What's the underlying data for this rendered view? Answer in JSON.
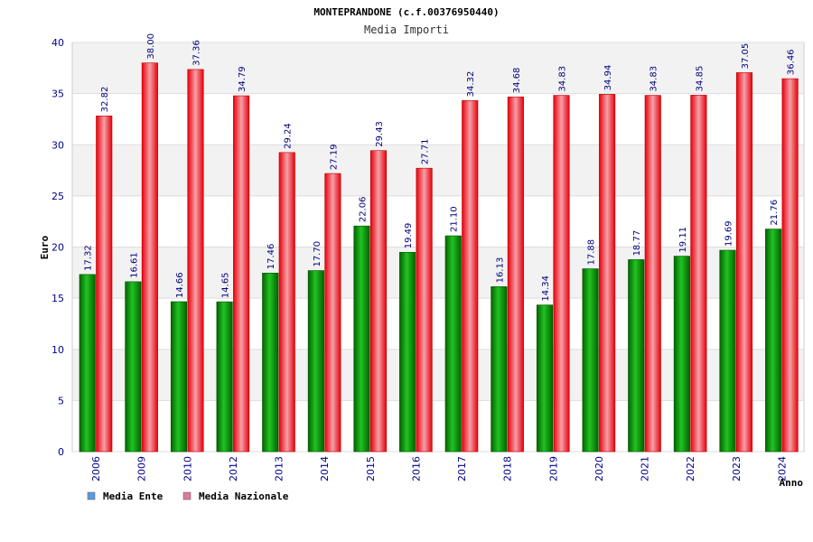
{
  "chart_data": {
    "type": "bar",
    "title": "MONTEPRANDONE (c.f.00376950440)",
    "subtitle": "Media Importi",
    "xlabel": "Anno",
    "ylabel": "Euro",
    "ylim": [
      0,
      40
    ],
    "yticks": [
      0,
      5,
      10,
      15,
      20,
      25,
      30,
      35,
      40
    ],
    "categories": [
      "2006",
      "2009",
      "2010",
      "2012",
      "2013",
      "2014",
      "2015",
      "2016",
      "2017",
      "2018",
      "2019",
      "2020",
      "2021",
      "2022",
      "2023",
      "2024"
    ],
    "series": [
      {
        "name": "Media Ente",
        "color": "#00a000",
        "values": [
          17.32,
          16.61,
          14.66,
          14.65,
          17.46,
          17.7,
          22.06,
          19.49,
          21.1,
          16.13,
          14.34,
          17.88,
          18.77,
          19.11,
          19.69,
          21.76
        ],
        "labels": [
          "17.32",
          "16.61",
          "14.66",
          "14.65",
          "17.46",
          "17.70",
          "22.06",
          "19.49",
          "21.10",
          "16.13",
          "14.34",
          "17.88",
          "18.77",
          "19.11",
          "19.69",
          "21.76"
        ]
      },
      {
        "name": "Media Nazionale",
        "color": "#e8000a",
        "values": [
          32.82,
          38.0,
          37.36,
          34.79,
          29.24,
          27.19,
          29.43,
          27.71,
          34.32,
          34.68,
          34.83,
          34.94,
          34.83,
          34.85,
          37.05,
          36.46
        ],
        "labels": [
          "32.82",
          "38.00",
          "37.36",
          "34.79",
          "29.24",
          "27.19",
          "29.43",
          "27.71",
          "34.32",
          "34.68",
          "34.83",
          "34.94",
          "34.83",
          "34.85",
          "37.05",
          "36.46"
        ]
      }
    ],
    "legend": [
      {
        "label": "Media Ente",
        "color": "#5b9be0"
      },
      {
        "label": "Media Nazionale",
        "color": "#e07aa0"
      }
    ],
    "grid": true,
    "legend_position": "bottom-left"
  }
}
